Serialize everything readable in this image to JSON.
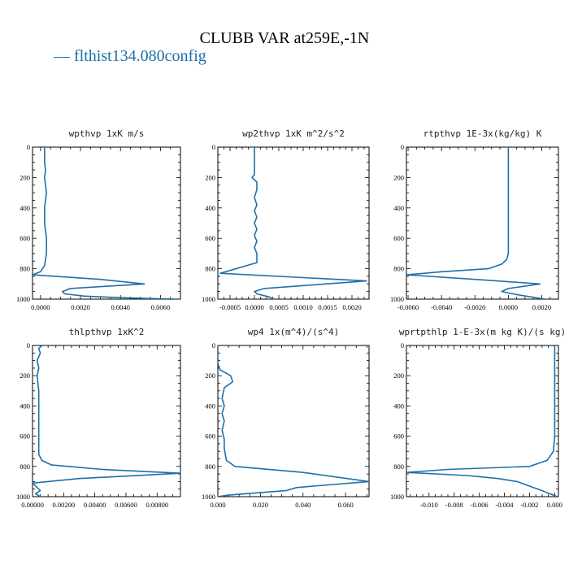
{
  "suptitle": "CLUBB VAR at259E,-1N",
  "legend": {
    "label": "— flthist134.080config",
    "color": "#1f6fa8"
  },
  "chart_data": [
    {
      "type": "line",
      "title": "wpthvp   1xK m/s",
      "xlim": [
        -0.0004,
        0.007
      ],
      "ylim": [
        1000,
        0
      ],
      "xticks": [
        0,
        0.002,
        0.004,
        0.006
      ],
      "xticklabels": [
        "0.0000",
        "0.0020",
        "0.0040",
        "0.0060"
      ],
      "yticks": [
        0,
        200,
        400,
        600,
        800,
        1000
      ],
      "series": [
        {
          "x": [
            0.0002,
            0.0002,
            0.0002,
            0.00025,
            0.0002,
            0.00025,
            0.0003,
            0.00025,
            0.0002,
            0.0002,
            0.0002,
            0.00025,
            0.0003,
            0.0003,
            0.0003,
            0.0002,
            0.0,
            -0.0004,
            0.003,
            0.0052,
            0.0015,
            0.0011,
            0.0012,
            0.0022,
            0.0039,
            0.0052,
            0.0068
          ],
          "y": [
            0,
            50,
            100,
            150,
            200,
            250,
            300,
            350,
            400,
            450,
            500,
            550,
            600,
            650,
            700,
            780,
            820,
            840,
            870,
            900,
            930,
            950,
            965,
            980,
            990,
            995,
            1000
          ]
        }
      ]
    },
    {
      "type": "line",
      "title": "wp2thvp   1xK m^2/s^2",
      "xlim": [
        -0.00075,
        0.00235
      ],
      "ylim": [
        1000,
        0
      ],
      "xticks": [
        -0.0005,
        0,
        0.0005,
        0.001,
        0.0015,
        0.002
      ],
      "xticklabels": [
        "-0.0005",
        "0.0000",
        "0.0005",
        "0.0010",
        "0.0015",
        "0.0020"
      ],
      "yticks": [
        0,
        200,
        400,
        600,
        800,
        1000
      ],
      "series": [
        {
          "x": [
            0.0,
            0.0,
            0.0,
            0.0,
            -5e-05,
            0.0,
            5e-05,
            5e-05,
            0.0,
            5e-05,
            0.0,
            5e-05,
            0.0,
            5e-05,
            0.0,
            5e-05,
            0.0,
            5e-05,
            5e-05,
            -0.0007,
            0.0023,
            0.0002,
            0.0,
            5e-05,
            0.0003,
            0.0004
          ],
          "y": [
            0,
            80,
            150,
            180,
            200,
            215,
            230,
            280,
            330,
            380,
            420,
            460,
            500,
            540,
            580,
            620,
            660,
            700,
            760,
            830,
            880,
            930,
            950,
            965,
            985,
            1000
          ]
        }
      ]
    },
    {
      "type": "line",
      "title": "rtpthvp   1E-3x(kg/kg) K",
      "xlim": [
        -0.0061,
        0.003
      ],
      "ylim": [
        1000,
        0
      ],
      "xticks": [
        -0.006,
        -0.004,
        -0.002,
        0,
        0.002
      ],
      "xticklabels": [
        "-0.0060",
        "-0.0040",
        "-0.0020",
        "0.0000",
        "0.0020"
      ],
      "yticks": [
        0,
        200,
        400,
        600,
        800,
        1000
      ],
      "series": [
        {
          "x": [
            0.0,
            0.0,
            0.0,
            0.0,
            0.0,
            0.0,
            0.0,
            0.0,
            -0.0001,
            -0.0004,
            -0.0012,
            -0.004,
            -0.0061,
            -0.002,
            0.0019,
            0.0,
            -0.0004,
            0.0005,
            0.0022
          ],
          "y": [
            0,
            100,
            200,
            300,
            400,
            500,
            600,
            700,
            740,
            770,
            800,
            820,
            840,
            870,
            900,
            930,
            950,
            970,
            1000
          ]
        }
      ]
    },
    {
      "type": "line",
      "title": "thlpthvp   1xK^2",
      "xlim": [
        0,
        0.0095
      ],
      "ylim": [
        1000,
        0
      ],
      "xticks": [
        0,
        0.002,
        0.004,
        0.006,
        0.008
      ],
      "xticklabels": [
        "0.00000",
        "0.00200",
        "0.00400",
        "0.00600",
        "0.00800"
      ],
      "yticks": [
        0,
        200,
        400,
        600,
        800,
        1000
      ],
      "series": [
        {
          "x": [
            0.0006,
            0.0004,
            0.0005,
            0.0003,
            0.0004,
            0.0003,
            0.0004,
            0.0004,
            0.0004,
            0.0004,
            0.0004,
            0.0004,
            0.0006,
            0.0012,
            0.0045,
            0.0095,
            0.003,
            0.0,
            0.0003,
            0.0005,
            0.0002,
            0.0005
          ],
          "y": [
            0,
            20,
            50,
            100,
            150,
            200,
            300,
            400,
            500,
            600,
            680,
            720,
            760,
            790,
            820,
            845,
            880,
            910,
            940,
            960,
            980,
            1000
          ]
        }
      ]
    },
    {
      "type": "line",
      "title": "wp4   1x(m^4)/(s^4)",
      "xlim": [
        0,
        0.071
      ],
      "ylim": [
        1000,
        0
      ],
      "xticks": [
        0,
        0.02,
        0.04,
        0.06
      ],
      "xticklabels": [
        "0.000",
        "0.020",
        "0.040",
        "0.060"
      ],
      "yticks": [
        0,
        200,
        400,
        600,
        800,
        1000
      ],
      "series": [
        {
          "x": [
            0.0,
            0.0,
            0.0,
            0.001,
            0.006,
            0.007,
            0.003,
            0.002,
            0.003,
            0.002,
            0.003,
            0.002,
            0.003,
            0.003,
            0.004,
            0.008,
            0.04,
            0.071,
            0.045,
            0.037,
            0.032,
            0.005,
            0.0
          ],
          "y": [
            0,
            80,
            120,
            160,
            200,
            240,
            280,
            350,
            400,
            450,
            500,
            560,
            620,
            680,
            760,
            800,
            840,
            900,
            930,
            940,
            960,
            990,
            1000
          ]
        }
      ]
    },
    {
      "type": "line",
      "title": "wprtpthlp   1-E-3x(m kg K)/(s kg)",
      "xlim": [
        -0.0118,
        0.0003
      ],
      "ylim": [
        1000,
        0
      ],
      "xticks": [
        -0.01,
        -0.008,
        -0.006,
        -0.004,
        -0.002,
        0
      ],
      "xticklabels": [
        "-0.010",
        "-0.008",
        "-0.006",
        "-0.004",
        "-0.002",
        "0.000"
      ],
      "yticks": [
        0,
        200,
        400,
        600,
        800,
        1000
      ],
      "series": [
        {
          "x": [
            0.0,
            0.0,
            0.0,
            0.0,
            0.0,
            0.0,
            0.0,
            -0.0001,
            -0.0006,
            -0.002,
            -0.0085,
            -0.0118,
            -0.007,
            -0.0045,
            -0.003,
            -0.001,
            0.0002
          ],
          "y": [
            0,
            100,
            200,
            300,
            400,
            500,
            600,
            700,
            760,
            800,
            820,
            840,
            860,
            880,
            900,
            960,
            1000
          ]
        }
      ]
    }
  ]
}
